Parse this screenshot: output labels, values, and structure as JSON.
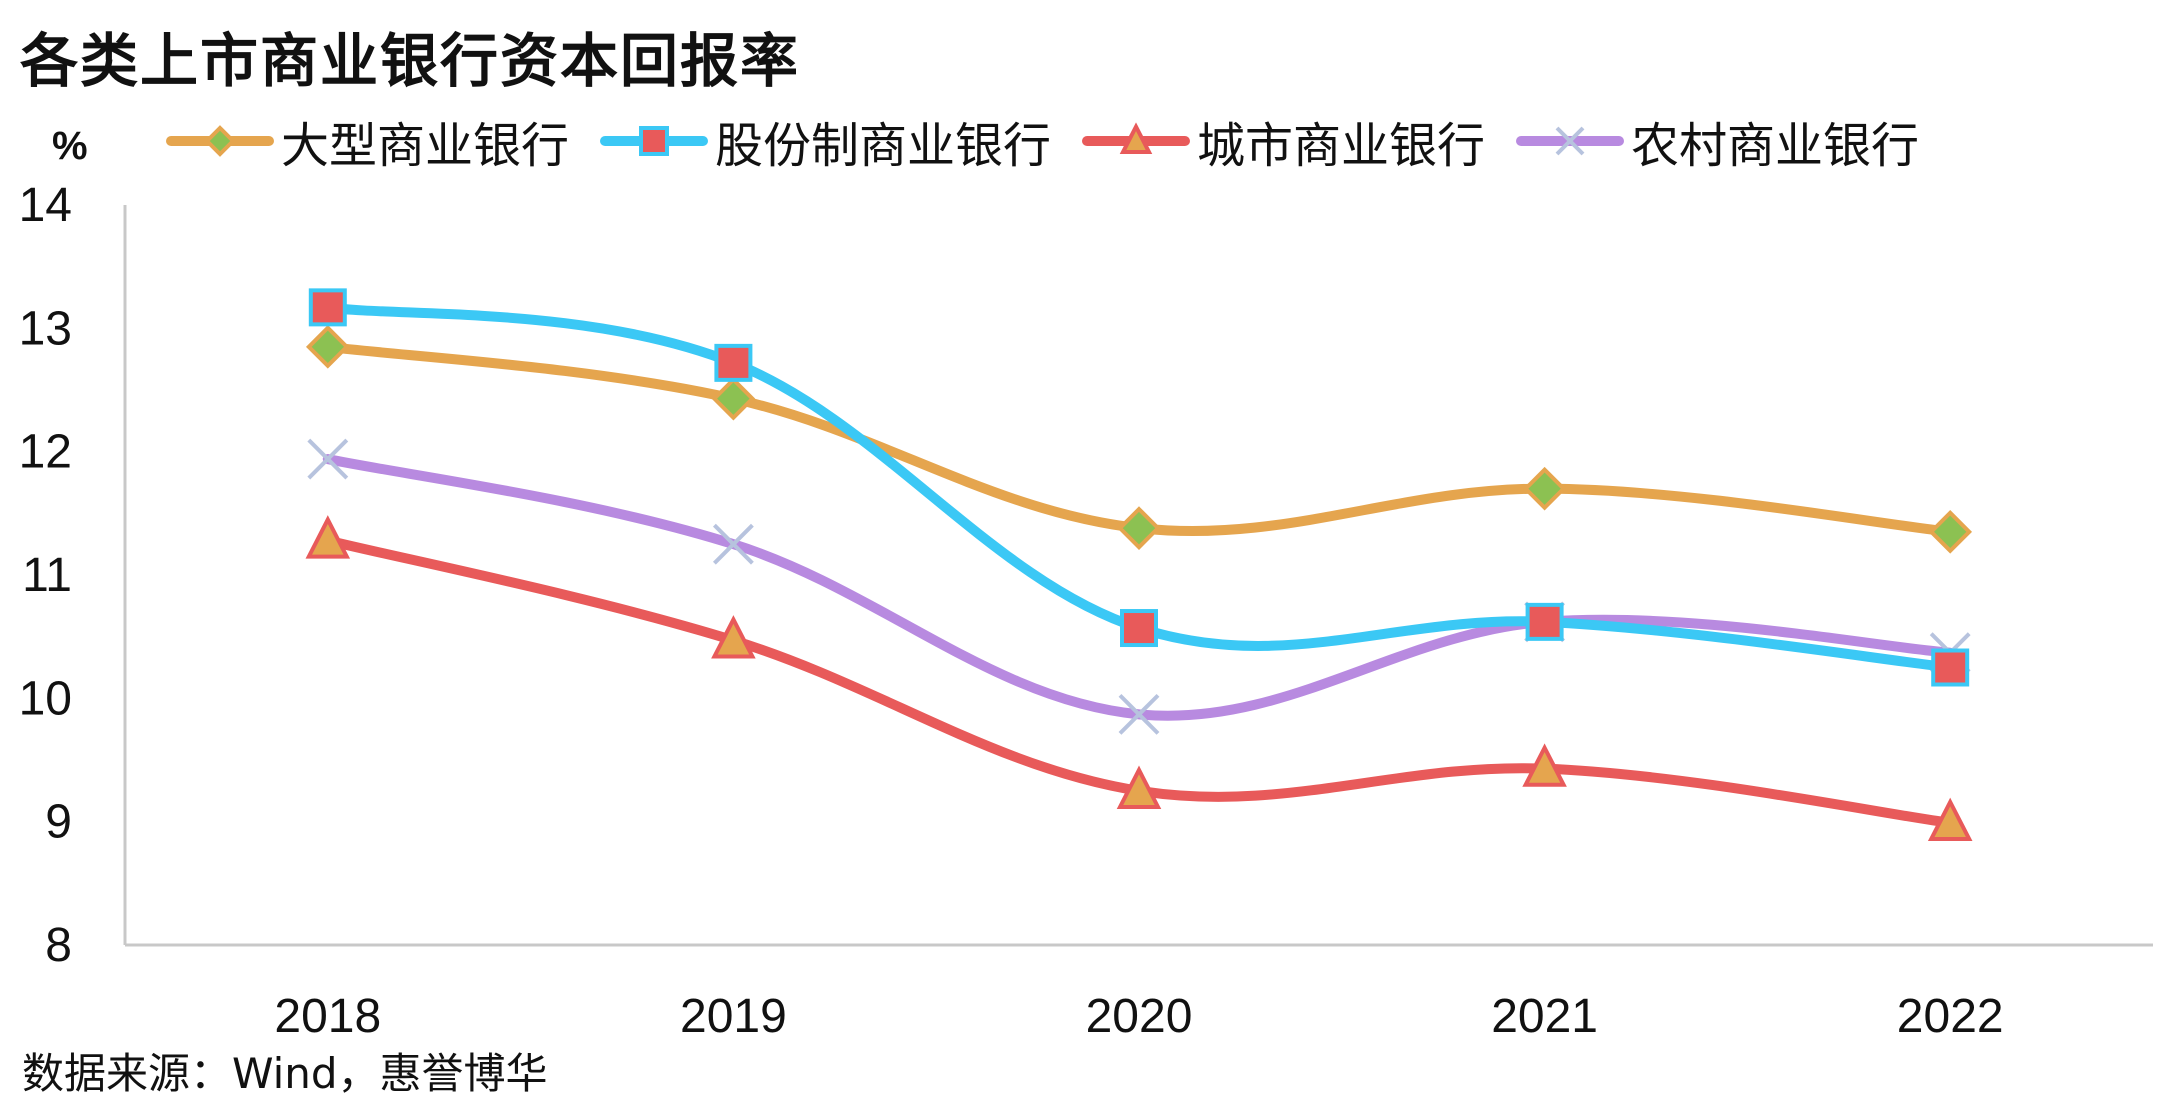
{
  "title": "各类上市商业银行资本回报率",
  "unit": "%",
  "source": "数据来源：Wind，惠誉博华",
  "chart_data": {
    "type": "line",
    "title": "各类上市商业银行资本回报率",
    "xlabel": "",
    "ylabel": "%",
    "categories": [
      "2018",
      "2019",
      "2020",
      "2021",
      "2022"
    ],
    "ylim": [
      8,
      14
    ],
    "yticks": [
      8,
      9,
      10,
      11,
      12,
      13,
      14
    ],
    "grid": false,
    "legend_position": "top",
    "smooth": true,
    "series": [
      {
        "name": "大型商业银行",
        "values": [
          12.85,
          12.43,
          11.38,
          11.7,
          11.35
        ],
        "color": "#E5A54E",
        "marker": "diamond",
        "marker_fill": "#8CC152",
        "marker_stroke": "#E5A54E"
      },
      {
        "name": "股份制商业银行",
        "values": [
          13.17,
          12.72,
          10.57,
          10.62,
          10.25
        ],
        "color": "#3BC8F5",
        "marker": "square",
        "marker_fill": "#E85A5A",
        "marker_stroke": "#3BC8F5"
      },
      {
        "name": "城市商业银行",
        "values": [
          11.28,
          10.47,
          9.25,
          9.43,
          8.99
        ],
        "color": "#E85A5A",
        "marker": "triangle",
        "marker_fill": "#E5A54E",
        "marker_stroke": "#E85A5A"
      },
      {
        "name": "农村商业银行",
        "values": [
          11.94,
          11.25,
          9.87,
          10.62,
          10.37
        ],
        "color": "#B88AE0",
        "marker": "cross",
        "marker_fill": "none",
        "marker_stroke": "#B7C3DE"
      }
    ]
  }
}
